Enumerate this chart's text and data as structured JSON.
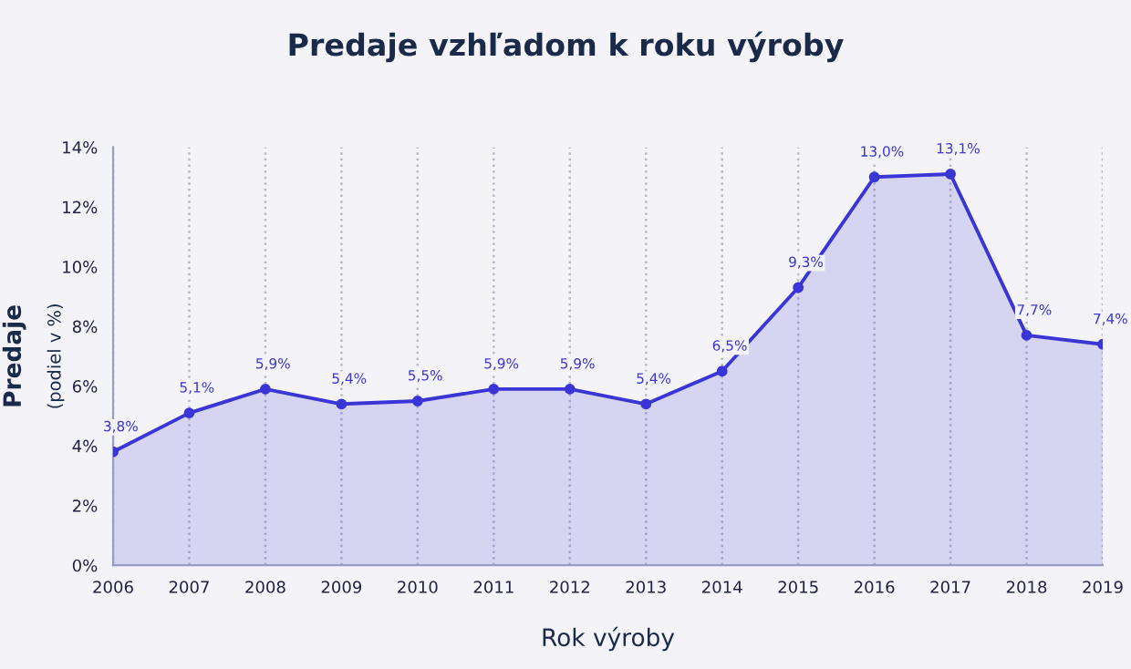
{
  "chart_data": {
    "type": "area",
    "title": "Predaje vzhľadom k roku výroby",
    "xlabel": "Rok výroby",
    "ylabel": "Predaje\n(podiel v %)",
    "categories": [
      "2006",
      "2007",
      "2008",
      "2009",
      "2010",
      "2011",
      "2012",
      "2013",
      "2014",
      "2015",
      "2016",
      "2017",
      "2018",
      "2019"
    ],
    "series": [
      {
        "color": "#3a35d4",
        "values": [
          3.8,
          5.1,
          5.9,
          5.4,
          5.5,
          5.9,
          5.9,
          5.4,
          6.5,
          9.3,
          13.0,
          13.1,
          7.7,
          7.4
        ],
        "value_labels": [
          "3,8%",
          "5,1%",
          "5,9%",
          "5,4%",
          "5,5%",
          "5,9%",
          "5,9%",
          "5,4%",
          "6,5%",
          "9,3%",
          "13,0%",
          "13,1%",
          "7,7%",
          "7,4%"
        ]
      }
    ],
    "ylim": [
      0,
      14
    ],
    "yticks": [
      {
        "value": 0,
        "label": "0%"
      },
      {
        "value": 2,
        "label": "2%"
      },
      {
        "value": 4,
        "label": "4%"
      },
      {
        "value": 6,
        "label": "6%"
      },
      {
        "value": 8,
        "label": "8%"
      },
      {
        "value": 10,
        "label": "10%"
      },
      {
        "value": 12,
        "label": "12%"
      },
      {
        "value": 14,
        "label": "14%"
      }
    ],
    "grid": "x",
    "marker": "circle",
    "line_style": "solid"
  }
}
